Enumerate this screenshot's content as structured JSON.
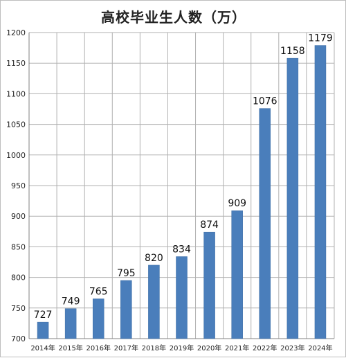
{
  "chart_data": {
    "type": "bar",
    "title": "高校毕业生人数（万）",
    "xlabel": "",
    "ylabel": "",
    "categories": [
      "2014年",
      "2015年",
      "2016年",
      "2017年",
      "2018年",
      "2019年",
      "2020年",
      "2021年",
      "2022年",
      "2023年",
      "2024年"
    ],
    "values": [
      727,
      749,
      765,
      795,
      820,
      834,
      874,
      909,
      1076,
      1158,
      1179
    ],
    "ylim": [
      700,
      1200
    ],
    "yticks": [
      700,
      750,
      800,
      850,
      900,
      950,
      1000,
      1050,
      1100,
      1150,
      1200
    ],
    "grid": true,
    "legend": "none",
    "colors": {
      "bar": "#4a7ebb",
      "bar_edge": "#3b6ba3",
      "grid": "#b0b0b0",
      "axis": "#808080"
    }
  }
}
